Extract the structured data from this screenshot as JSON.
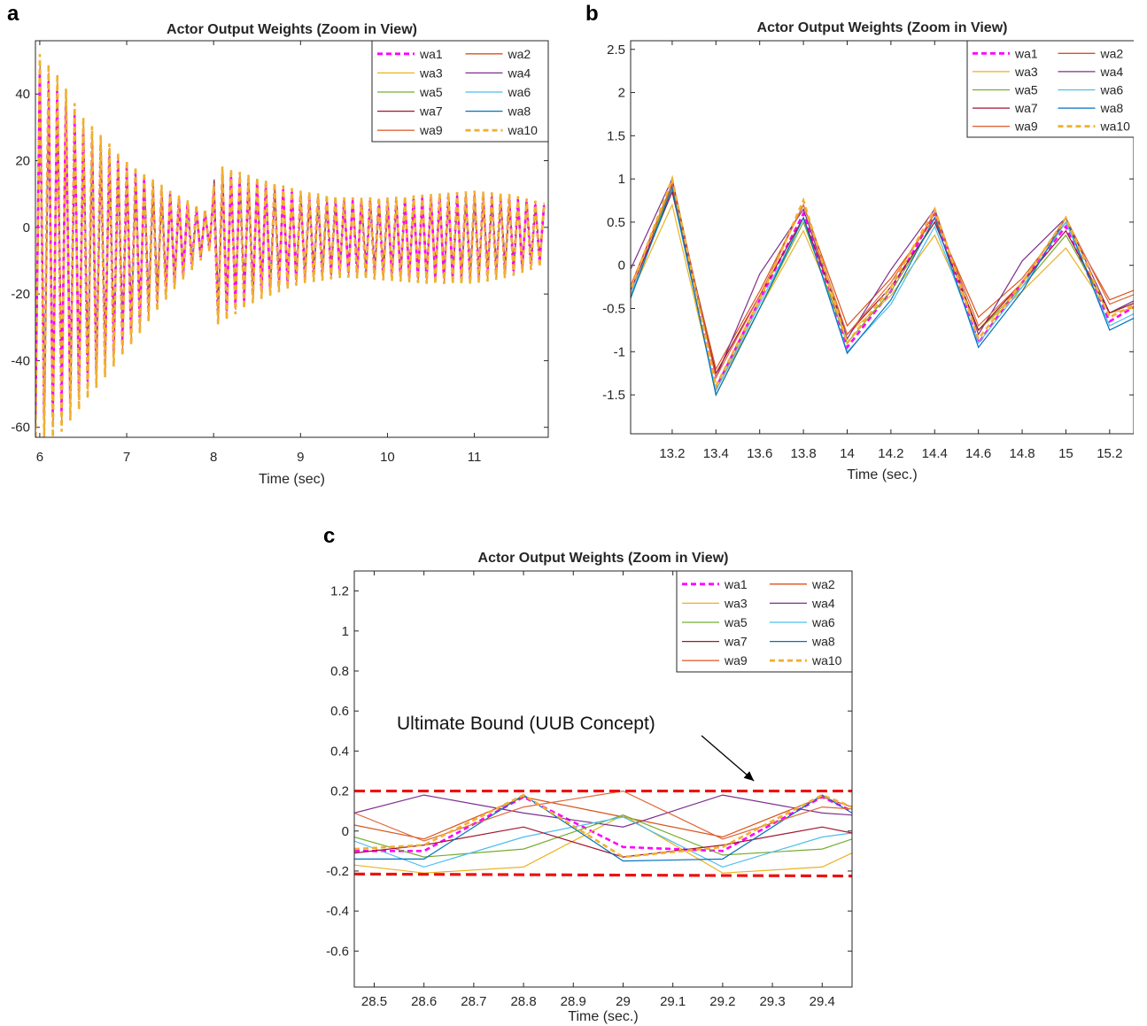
{
  "colors": {
    "wa1": "#ff00ff",
    "wa2": "#d95319",
    "wa3": "#edb120",
    "wa4": "#7e2f8e",
    "wa5": "#77ac30",
    "wa6": "#4dbeee",
    "wa7": "#a2142f",
    "wa8": "#0072bd",
    "wa9": "#e0663a",
    "wa10": "#f0b030",
    "bound": "#ee1111"
  },
  "panels": {
    "a": {
      "label": "a"
    },
    "b": {
      "label": "b"
    },
    "c": {
      "label": "c"
    }
  },
  "chart_data": [
    {
      "type": "line",
      "title": "Actor Output Weights (Zoom in View)",
      "xlabel": "Time (sec)",
      "ylabel": "",
      "xlim": [
        5.95,
        11.85
      ],
      "ylim": [
        -63,
        56
      ],
      "xticks": [
        6,
        7,
        8,
        9,
        10,
        11
      ],
      "yticks": [
        -60,
        -40,
        -20,
        0,
        20,
        40
      ],
      "legend": {
        "position": "top-right",
        "columns": 2
      },
      "grid": false,
      "oscillation": {
        "period_sec": 0.1,
        "note": "dense oscillation; envelope given below"
      },
      "envelope": {
        "t": [
          6.0,
          6.2,
          6.5,
          7.0,
          7.5,
          7.99,
          8.01,
          8.5,
          9.0,
          9.5,
          10.0,
          10.5,
          11.0,
          11.4,
          11.85
        ],
        "upper": [
          52,
          46,
          33,
          20,
          11,
          4,
          19,
          15,
          11,
          9,
          9,
          10,
          11,
          10,
          7
        ],
        "lower": [
          -63,
          -63,
          -53,
          -37,
          -20,
          -6,
          -30,
          -22,
          -17,
          -15,
          -16,
          -17,
          -17,
          -15,
          -11
        ]
      },
      "series": [
        {
          "name": "wa1",
          "dashed": true,
          "scale": 0.9,
          "phase": 0.0
        },
        {
          "name": "wa2",
          "dashed": false,
          "scale": 0.92,
          "phase": 0.3
        },
        {
          "name": "wa3",
          "dashed": false,
          "scale": 0.95,
          "phase": 0.6
        },
        {
          "name": "wa4",
          "dashed": false,
          "scale": 0.85,
          "phase": 0.9
        },
        {
          "name": "wa5",
          "dashed": false,
          "scale": 0.85,
          "phase": 1.2
        },
        {
          "name": "wa6",
          "dashed": false,
          "scale": 0.85,
          "phase": 1.5
        },
        {
          "name": "wa7",
          "dashed": false,
          "scale": 0.85,
          "phase": 1.8
        },
        {
          "name": "wa8",
          "dashed": false,
          "scale": 0.85,
          "phase": 2.1
        },
        {
          "name": "wa9",
          "dashed": false,
          "scale": 0.95,
          "phase": 2.4
        },
        {
          "name": "wa10",
          "dashed": true,
          "scale": 1.0,
          "phase": 0.15
        }
      ]
    },
    {
      "type": "line",
      "title": "Actor Output Weights (Zoom in View)",
      "xlabel": "Time (sec.)",
      "ylabel": "",
      "xlim": [
        13.01,
        15.31
      ],
      "ylim": [
        -1.95,
        2.6
      ],
      "xticks": [
        13.2,
        13.4,
        13.6,
        13.8,
        14,
        14.2,
        14.4,
        14.6,
        14.8,
        15,
        15.2
      ],
      "yticks": [
        -1.5,
        -1,
        -0.5,
        0,
        0.5,
        1,
        1.5,
        2,
        2.5
      ],
      "legend": {
        "position": "top-right",
        "columns": 2
      },
      "grid": false,
      "x": [
        13.0,
        13.2,
        13.4,
        13.6,
        13.8,
        14.0,
        14.2,
        14.4,
        14.6,
        14.8,
        15.0,
        15.2,
        15.4
      ],
      "series": [
        {
          "name": "wa1",
          "dashed": true,
          "values": [
            -0.35,
            0.95,
            -1.42,
            -0.4,
            0.6,
            -0.95,
            -0.3,
            0.6,
            -0.9,
            -0.2,
            0.45,
            -0.65,
            -0.35
          ]
        },
        {
          "name": "wa2",
          "dashed": false,
          "values": [
            -0.3,
            0.9,
            -1.2,
            -0.3,
            0.7,
            -0.7,
            -0.15,
            0.55,
            -0.6,
            -0.15,
            0.5,
            -0.4,
            -0.2
          ]
        },
        {
          "name": "wa3",
          "dashed": false,
          "values": [
            -0.4,
            0.7,
            -1.45,
            -0.5,
            0.4,
            -0.8,
            -0.35,
            0.35,
            -0.75,
            -0.3,
            0.2,
            -0.55,
            -0.45
          ]
        },
        {
          "name": "wa4",
          "dashed": false,
          "values": [
            -0.1,
            1.0,
            -1.3,
            -0.1,
            0.65,
            -0.85,
            -0.05,
            0.65,
            -0.8,
            0.05,
            0.55,
            -0.55,
            -0.3
          ]
        },
        {
          "name": "wa5",
          "dashed": false,
          "values": [
            -0.45,
            0.95,
            -1.5,
            -0.5,
            0.5,
            -0.9,
            -0.3,
            0.5,
            -0.75,
            -0.25,
            0.35,
            -0.55,
            -0.35
          ]
        },
        {
          "name": "wa6",
          "dashed": false,
          "values": [
            -0.4,
            0.85,
            -1.45,
            -0.45,
            0.55,
            -1.0,
            -0.45,
            0.45,
            -0.9,
            -0.25,
            0.5,
            -0.7,
            -0.45
          ]
        },
        {
          "name": "wa7",
          "dashed": false,
          "values": [
            -0.35,
            0.85,
            -1.25,
            -0.35,
            0.55,
            -0.8,
            -0.25,
            0.5,
            -0.75,
            -0.2,
            0.4,
            -0.55,
            -0.35
          ]
        },
        {
          "name": "wa8",
          "dashed": false,
          "values": [
            -0.45,
            0.9,
            -1.5,
            -0.5,
            0.55,
            -1.02,
            -0.4,
            0.55,
            -0.95,
            -0.3,
            0.55,
            -0.75,
            -0.5
          ]
        },
        {
          "name": "wa9",
          "dashed": false,
          "values": [
            -0.3,
            0.95,
            -1.3,
            -0.35,
            0.7,
            -0.8,
            -0.2,
            0.6,
            -0.7,
            -0.2,
            0.55,
            -0.45,
            -0.25
          ]
        },
        {
          "name": "wa10",
          "dashed": true,
          "values": [
            -0.35,
            1.0,
            -1.4,
            -0.4,
            0.75,
            -0.9,
            -0.25,
            0.65,
            -0.85,
            -0.2,
            0.55,
            -0.6,
            -0.35
          ]
        }
      ]
    },
    {
      "type": "line",
      "title": "Actor Output Weights (Zoom in View)",
      "xlabel": "Time (sec.)",
      "ylabel": "",
      "xlim": [
        28.46,
        29.46
      ],
      "ylim": [
        -0.78,
        1.3
      ],
      "xticks": [
        28.5,
        28.6,
        28.7,
        28.8,
        28.9,
        29,
        29.1,
        29.2,
        29.3,
        29.4
      ],
      "yticks": [
        -0.6,
        -0.4,
        -0.2,
        0,
        0.2,
        0.4,
        0.6,
        0.8,
        1,
        1.2
      ],
      "legend": {
        "position": "top-right",
        "columns": 2
      },
      "grid": false,
      "annotation": {
        "text": "Ultimate Bound (UUB Concept)",
        "arrow_to": [
          29.27,
          0.215
        ]
      },
      "bounds": [
        {
          "x": [
            28.46,
            29.46
          ],
          "y": [
            0.2,
            0.2
          ]
        },
        {
          "x": [
            28.46,
            29.46
          ],
          "y": [
            -0.215,
            -0.225
          ]
        }
      ],
      "x": [
        28.46,
        28.6,
        28.8,
        29.0,
        29.2,
        29.4,
        29.46
      ],
      "series": [
        {
          "name": "wa1",
          "dashed": true,
          "values": [
            -0.1,
            -0.1,
            0.17,
            -0.08,
            -0.1,
            0.17,
            0.1
          ]
        },
        {
          "name": "wa2",
          "dashed": false,
          "values": [
            0.03,
            -0.04,
            0.17,
            0.07,
            -0.03,
            0.17,
            0.12
          ]
        },
        {
          "name": "wa3",
          "dashed": false,
          "values": [
            -0.17,
            -0.21,
            -0.18,
            0.08,
            -0.21,
            -0.18,
            -0.11
          ]
        },
        {
          "name": "wa4",
          "dashed": false,
          "values": [
            0.09,
            0.18,
            0.09,
            0.02,
            0.18,
            0.09,
            0.08
          ]
        },
        {
          "name": "wa5",
          "dashed": false,
          "values": [
            -0.03,
            -0.13,
            -0.09,
            0.08,
            -0.12,
            -0.09,
            -0.04
          ]
        },
        {
          "name": "wa6",
          "dashed": false,
          "values": [
            -0.05,
            -0.18,
            -0.03,
            0.07,
            -0.18,
            -0.03,
            -0.01
          ]
        },
        {
          "name": "wa7",
          "dashed": false,
          "values": [
            -0.11,
            -0.07,
            0.02,
            -0.13,
            -0.07,
            0.02,
            -0.01
          ]
        },
        {
          "name": "wa8",
          "dashed": false,
          "values": [
            -0.14,
            -0.14,
            0.18,
            -0.15,
            -0.14,
            0.18,
            0.09
          ]
        },
        {
          "name": "wa9",
          "dashed": false,
          "values": [
            0.09,
            -0.05,
            0.12,
            0.2,
            -0.04,
            0.12,
            0.11
          ]
        },
        {
          "name": "wa10",
          "dashed": true,
          "values": [
            -0.09,
            -0.07,
            0.18,
            -0.13,
            -0.08,
            0.18,
            0.12
          ]
        }
      ]
    }
  ]
}
